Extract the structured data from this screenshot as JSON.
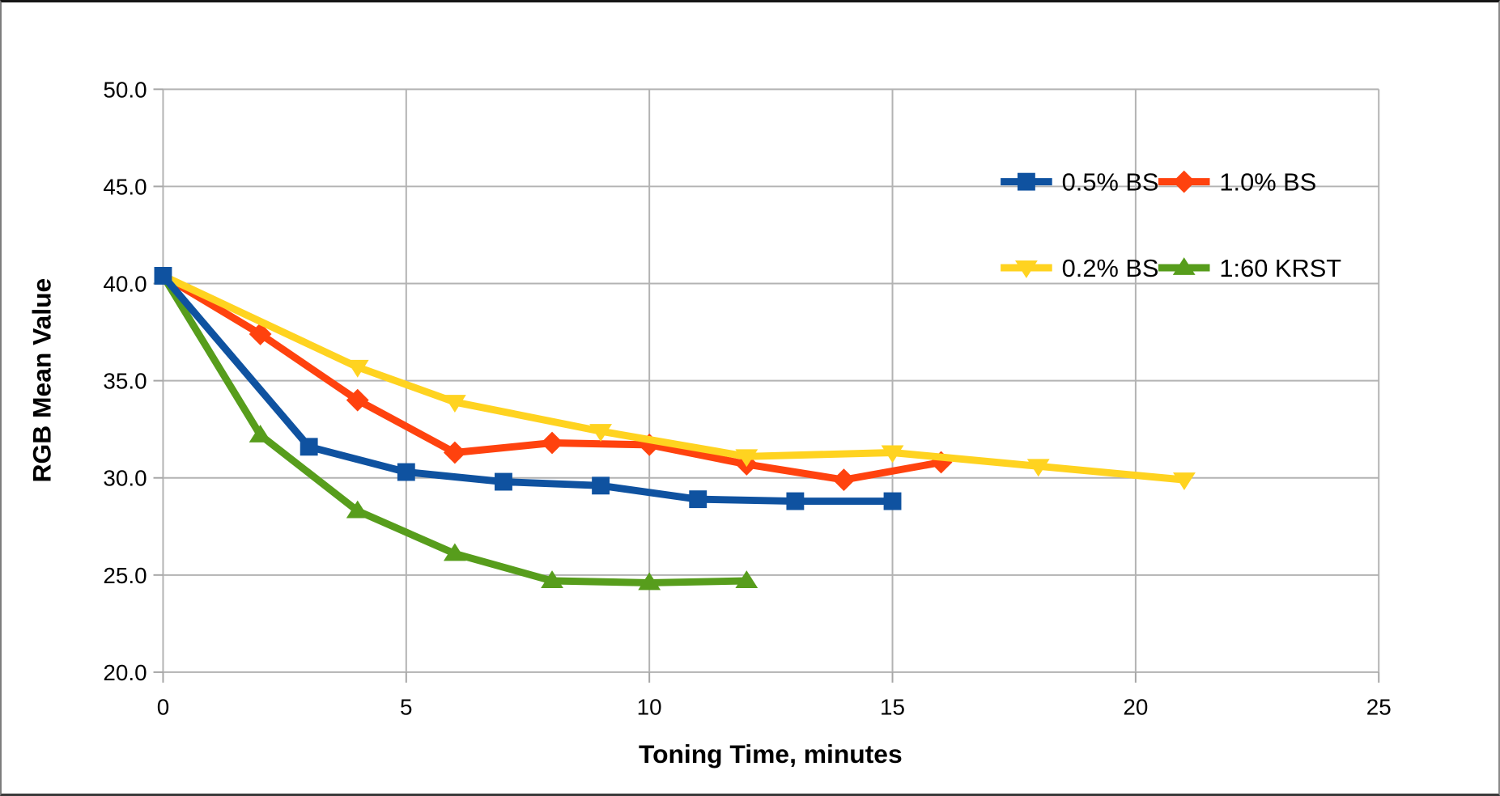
{
  "chart_data": {
    "type": "line",
    "title": "",
    "xlabel": "Toning Time, minutes",
    "ylabel": "RGB Mean Value",
    "xlim": [
      0,
      25
    ],
    "ylim": [
      20,
      50
    ],
    "x_ticks": [
      {
        "value": 0,
        "label": "0"
      },
      {
        "value": 5,
        "label": "5"
      },
      {
        "value": 10,
        "label": "10"
      },
      {
        "value": 15,
        "label": "15"
      },
      {
        "value": 20,
        "label": "20"
      },
      {
        "value": 25,
        "label": "25"
      }
    ],
    "y_ticks": [
      {
        "value": 20,
        "label": "20.0"
      },
      {
        "value": 25,
        "label": "25.0"
      },
      {
        "value": 30,
        "label": "30.0"
      },
      {
        "value": 35,
        "label": "35.0"
      },
      {
        "value": 40,
        "label": "40.0"
      },
      {
        "value": 45,
        "label": "45.0"
      },
      {
        "value": 50,
        "label": "50.0"
      }
    ],
    "grid": "both",
    "legend_position": "inside-upper-right",
    "legend_rows": [
      [
        "0.5% BS",
        "1.0% BS"
      ],
      [
        "0.2% BS",
        "1:60 KRST"
      ]
    ],
    "series": [
      {
        "name": "0.5% BS",
        "color": "#0F52A0",
        "marker": "square",
        "points": [
          [
            0,
            40.4
          ],
          [
            3,
            31.6
          ],
          [
            5,
            30.3
          ],
          [
            7,
            29.8
          ],
          [
            9,
            29.6
          ],
          [
            11,
            28.9
          ],
          [
            13,
            28.8
          ],
          [
            15,
            28.8
          ]
        ]
      },
      {
        "name": "1.0% BS",
        "color": "#FF420E",
        "marker": "diamond",
        "points": [
          [
            0,
            40.4
          ],
          [
            2,
            37.4
          ],
          [
            4,
            34.0
          ],
          [
            6,
            31.3
          ],
          [
            8,
            31.8
          ],
          [
            10,
            31.7
          ],
          [
            12,
            30.7
          ],
          [
            14,
            29.9
          ],
          [
            16,
            30.8
          ]
        ]
      },
      {
        "name": "0.2% BS",
        "color": "#FFD320",
        "marker": "triangle-down",
        "points": [
          [
            0,
            40.4
          ],
          [
            4,
            35.7
          ],
          [
            6,
            33.9
          ],
          [
            9,
            32.4
          ],
          [
            12,
            31.1
          ],
          [
            15,
            31.3
          ],
          [
            18,
            30.6
          ],
          [
            21,
            29.9
          ]
        ]
      },
      {
        "name": "1:60 KRST",
        "color": "#579D1C",
        "marker": "triangle-up",
        "points": [
          [
            0,
            40.4
          ],
          [
            2,
            32.2
          ],
          [
            4,
            28.3
          ],
          [
            6,
            26.1
          ],
          [
            8,
            24.7
          ],
          [
            10,
            24.6
          ],
          [
            12,
            24.7
          ]
        ]
      }
    ]
  },
  "colors": {
    "grid": "#b3b3b3",
    "axis": "#a6a6a6",
    "text": "#000000",
    "background": "#ffffff"
  }
}
